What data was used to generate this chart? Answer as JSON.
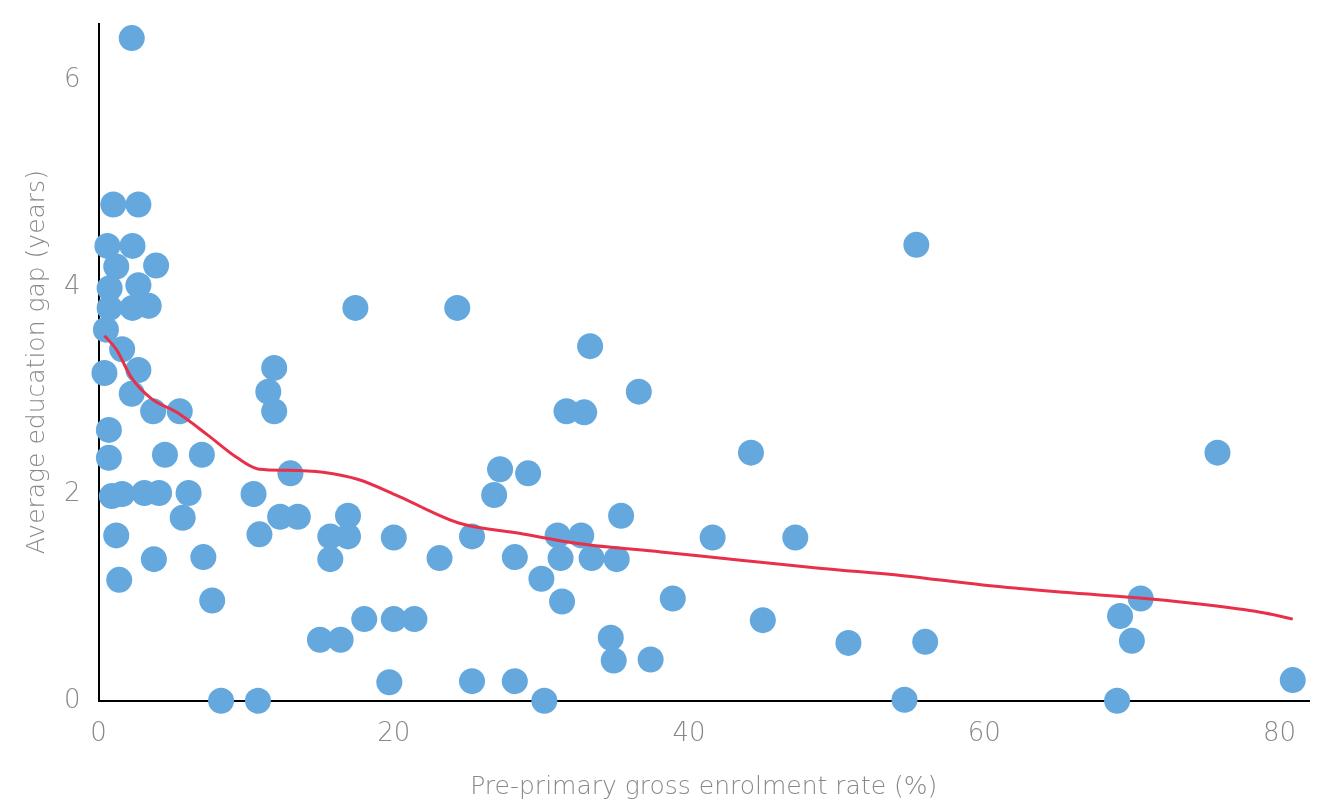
{
  "chart_data": {
    "type": "scatter",
    "xlabel": "Pre-primary gross enrolment rate (%)",
    "ylabel": "Average education gap (years)",
    "xlim": [
      0,
      82
    ],
    "ylim": [
      0,
      6.55
    ],
    "xticks": [
      0,
      20,
      40,
      60,
      80
    ],
    "yticks": [
      0,
      2,
      4,
      6
    ],
    "grid": false,
    "legend": false,
    "series": [
      {
        "type": "scatter",
        "marker": "circle",
        "color": "#64a8de",
        "x": [
          2.25,
          1.0,
          2.7,
          0.6,
          2.3,
          1.2,
          3.9,
          0.75,
          2.7,
          0.75,
          2.3,
          3.4,
          0.5,
          1.6,
          0.4,
          2.7,
          2.25,
          3.7,
          5.5,
          0.7,
          0.7,
          4.5,
          7.0,
          0.9,
          1.6,
          3.1,
          4.1,
          6.1,
          5.7,
          1.2,
          3.75,
          7.1,
          1.4,
          7.7,
          8.3,
          10.8,
          10.5,
          11.5,
          11.9,
          11.9,
          10.9,
          13.0,
          12.3,
          13.5,
          15.0,
          16.4,
          15.7,
          15.7,
          16.9,
          16.9,
          17.4,
          18.0,
          19.7,
          20.0,
          20.0,
          21.4,
          23.1,
          24.3,
          25.3,
          25.3,
          26.8,
          27.2,
          28.2,
          28.2,
          29.1,
          30.0,
          30.2,
          31.1,
          31.3,
          31.4,
          31.7,
          32.7,
          32.9,
          33.3,
          33.4,
          34.7,
          34.9,
          35.1,
          35.4,
          36.6,
          37.4,
          38.9,
          41.6,
          44.2,
          45.0,
          47.2,
          50.8,
          54.6,
          55.4,
          56.0,
          69.0,
          69.2,
          70.0,
          70.6,
          75.8,
          80.9
        ],
        "values": [
          6.41,
          4.8,
          4.8,
          4.4,
          4.4,
          4.2,
          4.21,
          3.99,
          4.02,
          3.8,
          3.8,
          3.82,
          3.59,
          3.4,
          3.17,
          3.2,
          2.97,
          2.8,
          2.8,
          2.62,
          2.35,
          2.38,
          2.38,
          1.98,
          2.0,
          2.01,
          2.01,
          2.01,
          1.77,
          1.6,
          1.37,
          1.39,
          1.17,
          0.97,
          0,
          0,
          2.0,
          2.99,
          3.22,
          2.8,
          1.61,
          2.2,
          1.78,
          1.78,
          0.59,
          0.59,
          1.59,
          1.37,
          1.79,
          1.59,
          3.8,
          0.79,
          0.18,
          0.79,
          1.58,
          0.79,
          1.38,
          3.8,
          0.19,
          1.59,
          1.99,
          2.24,
          0.19,
          1.39,
          2.2,
          1.18,
          0,
          1.6,
          1.38,
          0.96,
          2.8,
          1.6,
          2.79,
          3.43,
          1.38,
          0.61,
          0.39,
          1.37,
          1.79,
          2.99,
          0.4,
          0.99,
          1.58,
          2.4,
          0.78,
          1.58,
          0.56,
          0.01,
          4.41,
          0.57,
          0,
          0.82,
          0.58,
          0.99,
          2.4,
          0.2
        ]
      },
      {
        "type": "line",
        "color": "#e8304a",
        "x": [
          0.4,
          1.2,
          2.25,
          3.6,
          5.3,
          7.4,
          9.4,
          10.9,
          12.8,
          15.2,
          17.6,
          20.3,
          24.4,
          28.5,
          32.6,
          38.1,
          43.5,
          49.0,
          54.5,
          59.9,
          65.4,
          70.9,
          75.6,
          79.0,
          80.9
        ],
        "values": [
          3.53,
          3.4,
          3.12,
          2.92,
          2.79,
          2.57,
          2.35,
          2.24,
          2.23,
          2.21,
          2.14,
          1.98,
          1.72,
          1.62,
          1.52,
          1.44,
          1.36,
          1.28,
          1.21,
          1.12,
          1.05,
          0.99,
          0.92,
          0.85,
          0.79
        ]
      }
    ]
  }
}
